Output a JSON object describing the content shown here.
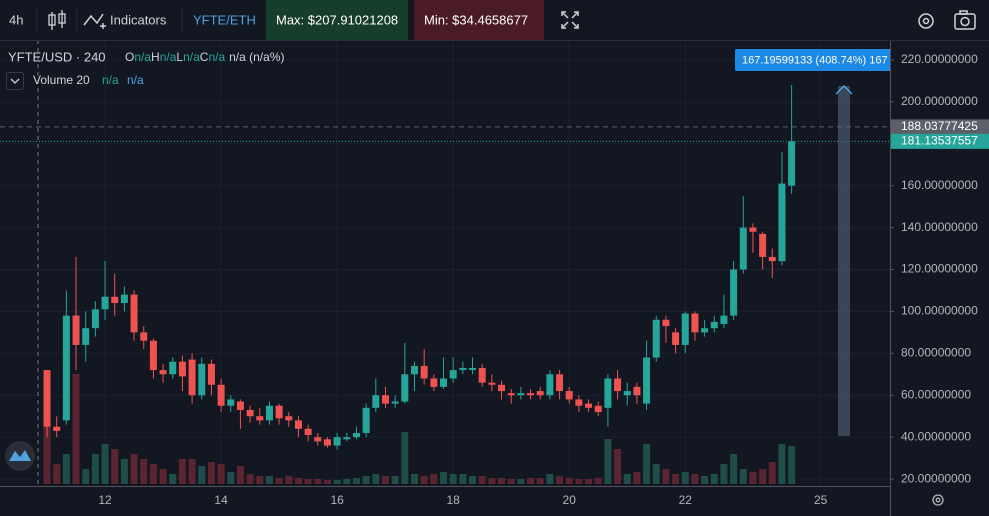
{
  "toolbar": {
    "interval": "4h",
    "indicators": "Indicators",
    "symbol": "YFTE/ETH",
    "max": "Max: $207.91021208",
    "min": "Min: $34.4658677"
  },
  "chart_data": {
    "type": "candlestick",
    "title": "YFTE/USD · 240",
    "ohlc_legend": [
      "O",
      "n/a",
      "H",
      "n/a",
      "L",
      "n/a",
      "C",
      "n/a",
      "n/a (n/a%)"
    ],
    "volume_legend": [
      "Volume 20",
      "n/a",
      "n/a"
    ],
    "categories": [
      null,
      null,
      null,
      null,
      null,
      null,
      "12",
      null,
      null,
      null,
      null,
      null,
      null,
      null,
      null,
      null,
      null,
      null,
      "14",
      null,
      null,
      null,
      null,
      null,
      null,
      null,
      null,
      null,
      null,
      null,
      "16",
      null,
      null,
      null,
      null,
      null,
      null,
      null,
      null,
      null,
      null,
      null,
      "18",
      null,
      null,
      null,
      null,
      null,
      null,
      null,
      null,
      null,
      null,
      null,
      "20",
      null,
      null,
      null,
      null,
      null,
      null,
      null,
      null,
      null,
      null,
      null,
      "22",
      null,
      null,
      null,
      null,
      null,
      null,
      null,
      null,
      null,
      null,
      null,
      null,
      null,
      "25",
      null,
      null,
      null,
      null,
      null,
      null
    ],
    "open": [
      72,
      45,
      48,
      98,
      84,
      92,
      101,
      107,
      104,
      108,
      90,
      86,
      72,
      70,
      76,
      77,
      60,
      75,
      65,
      55,
      57,
      53,
      50,
      48,
      55,
      50,
      48,
      44,
      40,
      39,
      36,
      39,
      40,
      42,
      54,
      60,
      56,
      57,
      70,
      74,
      68,
      64,
      68,
      72,
      72,
      73,
      66,
      65,
      61,
      60,
      61,
      62,
      60,
      70,
      62,
      58,
      56,
      55,
      54,
      68,
      60,
      64,
      56,
      78,
      96,
      90,
      84,
      99,
      90,
      92,
      94,
      98,
      120,
      140,
      137,
      126,
      124,
      160,
      null,
      null,
      null,
      null,
      null,
      null,
      null,
      null,
      null
    ],
    "high": [
      72,
      50,
      110,
      126,
      100,
      105,
      124,
      118,
      112,
      110,
      93,
      87,
      75,
      78,
      79,
      80,
      78,
      77,
      68,
      60,
      58,
      55,
      54,
      57,
      56,
      52,
      50,
      46,
      42,
      40,
      42,
      42,
      45,
      56,
      68,
      64,
      60,
      85,
      76,
      82,
      70,
      78,
      78,
      76,
      78,
      75,
      70,
      67,
      63,
      64,
      63,
      64,
      72,
      72,
      64,
      60,
      58,
      57,
      70,
      72,
      66,
      66,
      86,
      98,
      98,
      92,
      100,
      100,
      96,
      98,
      108,
      124,
      155,
      142,
      138,
      130,
      176,
      208,
      null,
      null,
      null,
      null,
      null,
      null,
      null,
      null,
      null
    ],
    "low": [
      40,
      40,
      46,
      72,
      76,
      88,
      96,
      98,
      100,
      86,
      82,
      68,
      66,
      68,
      62,
      56,
      58,
      60,
      52,
      52,
      44,
      47,
      46,
      46,
      46,
      45,
      40,
      38,
      36,
      35,
      34,
      38,
      39,
      40,
      52,
      54,
      54,
      56,
      62,
      65,
      62,
      63,
      66,
      70,
      70,
      64,
      62,
      58,
      56,
      58,
      58,
      58,
      58,
      58,
      56,
      52,
      52,
      50,
      45,
      58,
      55,
      56,
      53,
      76,
      85,
      80,
      80,
      86,
      88,
      90,
      92,
      96,
      118,
      128,
      120,
      116,
      122,
      156,
      null,
      null,
      null,
      null,
      null,
      null,
      null,
      null,
      null
    ],
    "close": [
      45,
      43,
      98,
      84,
      92,
      101,
      107,
      104,
      108,
      90,
      86,
      72,
      70,
      76,
      69,
      60,
      75,
      65,
      55,
      58,
      53,
      50,
      48,
      55,
      49,
      48,
      44,
      41,
      38,
      36,
      40,
      40,
      42,
      54,
      60,
      56,
      57,
      70,
      74,
      68,
      64,
      68,
      72,
      73,
      73,
      66,
      65,
      62,
      60,
      61,
      60,
      60,
      70,
      62,
      58,
      55,
      54,
      52,
      68,
      62,
      62,
      60,
      78,
      96,
      93,
      84,
      99,
      90,
      92,
      95,
      98,
      120,
      140,
      138,
      126,
      124,
      161,
      181.14,
      null,
      null,
      null,
      null,
      null,
      null,
      null,
      null,
      null
    ],
    "volume": [
      64,
      20,
      30,
      110,
      15,
      30,
      40,
      35,
      25,
      30,
      25,
      20,
      15,
      10,
      25,
      25,
      18,
      22,
      20,
      12,
      18,
      10,
      8,
      8,
      6,
      8,
      6,
      5,
      5,
      4,
      4,
      5,
      6,
      8,
      10,
      8,
      8,
      52,
      10,
      8,
      10,
      12,
      10,
      10,
      8,
      8,
      6,
      6,
      5,
      5,
      6,
      6,
      10,
      8,
      6,
      5,
      5,
      6,
      45,
      35,
      10,
      12,
      40,
      20,
      15,
      10,
      12,
      10,
      8,
      10,
      20,
      30,
      15,
      12,
      15,
      22,
      40,
      38,
      null,
      null,
      null,
      null,
      null,
      null,
      null,
      null,
      null
    ],
    "colors": {
      "up": "#26a69a",
      "down": "#ef5350",
      "volume_up": "#1f4d48",
      "volume_down": "#5a2530"
    },
    "ylim": [
      16.7,
      229.5
    ],
    "yticks": [
      {
        "value": 20,
        "label": "20.00000000"
      },
      {
        "value": 40,
        "label": "40.00000000"
      },
      {
        "value": 60,
        "label": "60.00000000"
      },
      {
        "value": 80,
        "label": "80.00000000"
      },
      {
        "value": 100,
        "label": "100.00000000"
      },
      {
        "value": 120,
        "label": "120.00000000"
      },
      {
        "value": 140,
        "label": "140.00000000"
      },
      {
        "value": 160,
        "label": "160.00000000"
      },
      {
        "value": 180,
        "label": "180.00000000"
      },
      {
        "value": 200,
        "label": "200.00000000"
      },
      {
        "value": 220,
        "label": "220.00000000"
      }
    ],
    "grid": true,
    "price_lines": [
      {
        "value": 188.03777425,
        "color": "#5d606b",
        "style": "dashed"
      },
      {
        "value": 181.13537557,
        "color": "#26a69a",
        "style": "dotted"
      }
    ],
    "measure_label": "167.19599133 (408.74%) 167"
  }
}
